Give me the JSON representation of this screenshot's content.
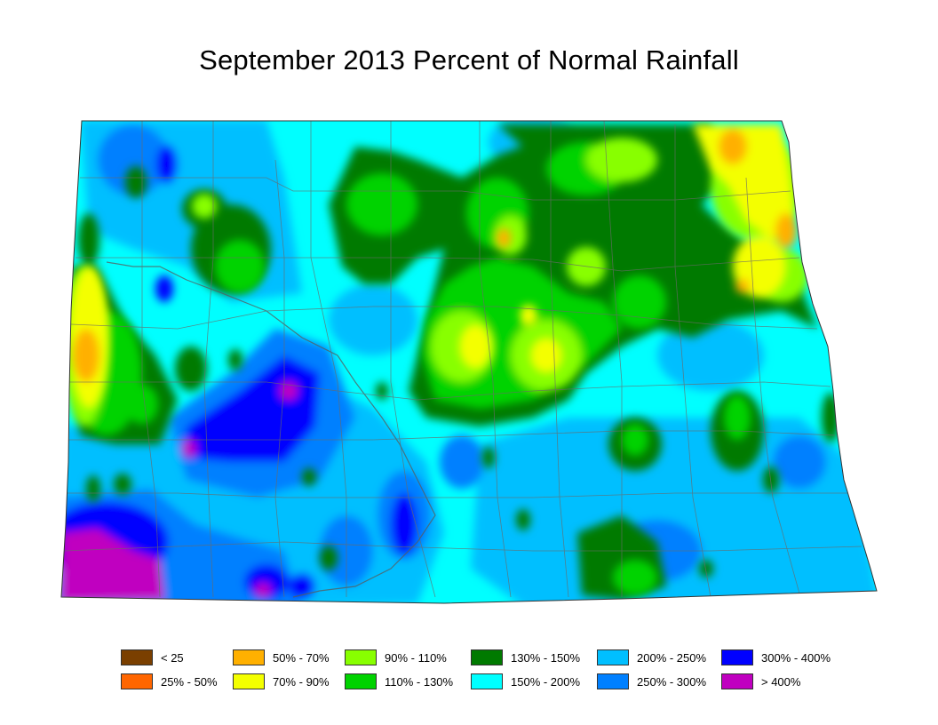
{
  "title": "September 2013 Percent of Normal Rainfall",
  "legend": {
    "items": [
      {
        "label": "< 25",
        "color": "#7a3f00"
      },
      {
        "label": "25% - 50%",
        "color": "#ff6600"
      },
      {
        "label": "50% - 70%",
        "color": "#ffb000"
      },
      {
        "label": "70% - 90%",
        "color": "#f4ff00"
      },
      {
        "label": "90% - 110%",
        "color": "#88ff00"
      },
      {
        "label": "110% - 130%",
        "color": "#00d300"
      },
      {
        "label": "130% - 150%",
        "color": "#007a00"
      },
      {
        "label": "150% - 200%",
        "color": "#00ffff"
      },
      {
        "label": "200% - 250%",
        "color": "#00bfff"
      },
      {
        "label": "250% - 300%",
        "color": "#0080ff"
      },
      {
        "label": "300% - 400%",
        "color": "#0000ff"
      },
      {
        "label": "> 400%",
        "color": "#c000c0"
      }
    ]
  }
}
